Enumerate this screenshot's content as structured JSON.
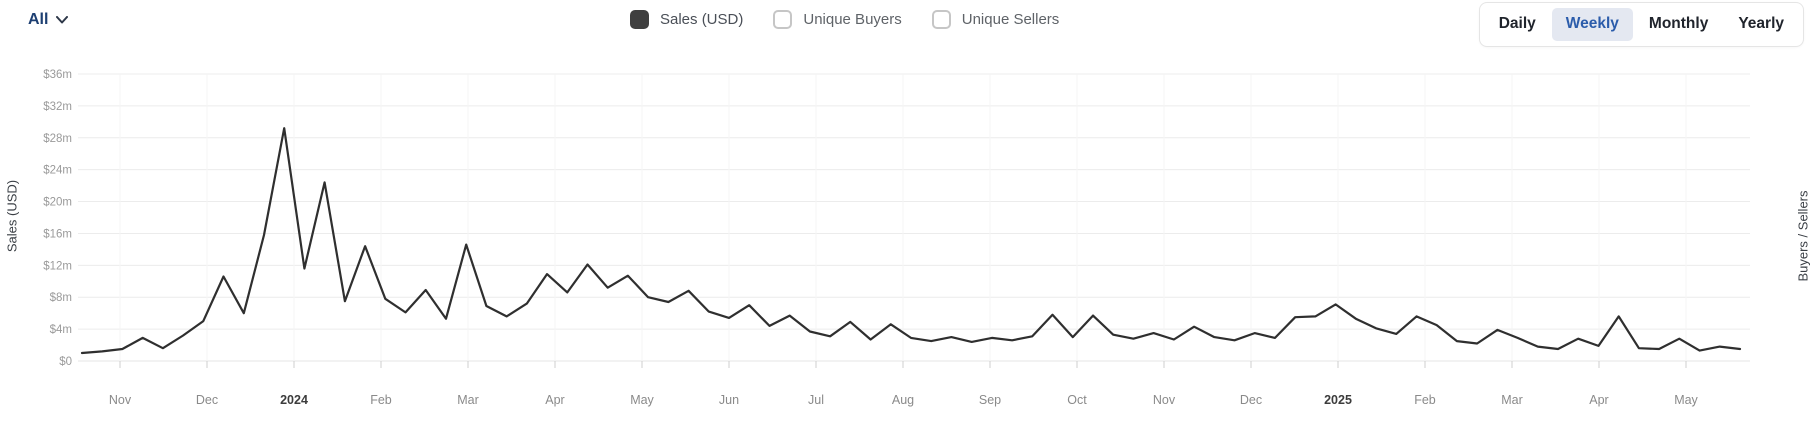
{
  "header": {
    "range_selector": {
      "label": "All"
    },
    "legend": [
      {
        "label": "Sales (USD)",
        "checked": true
      },
      {
        "label": "Unique Buyers",
        "checked": false
      },
      {
        "label": "Unique Sellers",
        "checked": false
      }
    ],
    "period_buttons": [
      {
        "label": "Daily",
        "active": false
      },
      {
        "label": "Weekly",
        "active": true
      },
      {
        "label": "Monthly",
        "active": false
      },
      {
        "label": "Yearly",
        "active": false
      }
    ]
  },
  "colors": {
    "accent_blue": "#2b5cab",
    "active_button_bg": "#e4e8f1",
    "dropdown_text": "#1d3f72",
    "line": "#2f2f2f",
    "grid_h": "#ececec",
    "grid_v": "#f5f5f5",
    "tick": "#cfcfcf",
    "y_label": "#9a9a9a",
    "month_label": "#8a8a8a",
    "year_label": "#3c3c3c"
  },
  "chart_data": {
    "type": "line",
    "title": "",
    "interval": "weekly",
    "y_axis": {
      "title": "Sales (USD)",
      "tick_labels": [
        "$36m",
        "$32m",
        "$28m",
        "$24m",
        "$20m",
        "$16m",
        "$12m",
        "$8m",
        "$4m",
        "$0"
      ],
      "min": 0,
      "max": 36000000,
      "unit": "USD"
    },
    "secondary_y_axis": {
      "title": "Buyers / Sellers"
    },
    "x_axis": {
      "tick_labels": [
        "Nov",
        "Dec",
        "2024",
        "Feb",
        "Mar",
        "Apr",
        "May",
        "Jun",
        "Jul",
        "Aug",
        "Sep",
        "Oct",
        "Nov",
        "Dec",
        "2025",
        "Feb",
        "Mar",
        "Apr",
        "May"
      ],
      "bold_labels": [
        "2024",
        "2025"
      ],
      "range_start": "Oct 2023",
      "range_end": "May 2025"
    },
    "grid": true,
    "legend_position": "top",
    "series": [
      {
        "name": "Sales (USD)",
        "color": "#2f2f2f",
        "unit_scale": "millions USD",
        "values_musd": [
          1.0,
          1.2,
          1.5,
          2.9,
          1.6,
          3.2,
          5.0,
          10.6,
          6.0,
          15.8,
          29.2,
          11.6,
          22.4,
          7.5,
          14.4,
          7.8,
          6.1,
          8.9,
          5.3,
          14.6,
          6.9,
          5.6,
          7.2,
          10.9,
          8.6,
          12.1,
          9.2,
          10.7,
          8.0,
          7.4,
          8.8,
          6.2,
          5.4,
          7.0,
          4.4,
          5.7,
          3.7,
          3.1,
          4.9,
          2.7,
          4.6,
          2.9,
          2.5,
          3.0,
          2.4,
          2.9,
          2.6,
          3.1,
          5.8,
          3.0,
          5.7,
          3.3,
          2.8,
          3.5,
          2.7,
          4.3,
          3.0,
          2.6,
          3.5,
          2.9,
          5.5,
          5.6,
          7.1,
          5.3,
          4.1,
          3.4,
          5.6,
          4.5,
          2.5,
          2.2,
          3.9,
          2.9,
          1.8,
          1.5,
          2.8,
          1.9,
          5.6,
          1.6,
          1.5,
          2.8,
          1.3,
          1.8,
          1.5
        ]
      }
    ]
  }
}
